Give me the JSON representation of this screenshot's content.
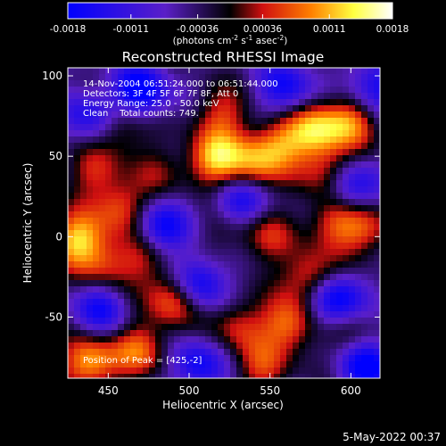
{
  "chart_data": {
    "type": "heatmap",
    "title": "Reconstructed RHESSI Image",
    "xlabel": "Heliocentric X (arcsec)",
    "ylabel": "Heliocentric Y (arcsec)",
    "xlim": [
      425,
      618
    ],
    "ylim": [
      -88,
      105
    ],
    "xticks": [
      450,
      500,
      550,
      600
    ],
    "yticks": [
      -50,
      0,
      50,
      100
    ],
    "annotations": [
      "14-Nov-2004 06:51:24.000 to 06:51:44.000",
      "Detectors: 3F 4F 5F 6F 7F 8F, Att 0",
      "Energy Range: 25.0 - 50.0 keV",
      "Clean    Total counts: 749.",
      "Position of Peak = [425,-2]"
    ],
    "colorbar": {
      "min": -0.0018,
      "max": 0.0018,
      "tick_labels": [
        "-0.0018",
        "-0.0011",
        "-0.00036",
        "0.00036",
        "0.0011",
        "0.0018"
      ],
      "tick_values": [
        -0.0018,
        -0.0011,
        -0.00036,
        0.00036,
        0.0011,
        0.0018
      ],
      "units_label": "(photons cm",
      "units_exp1": "-2",
      "units_mid": " s",
      "units_exp2": "-1",
      "units_end": " asec",
      "units_exp3": "-2",
      "units_close": ")",
      "colors": [
        "#0000ff",
        "#5a1fc8",
        "#000000",
        "#d01010",
        "#ff8000",
        "#ffff40",
        "#ffffff"
      ],
      "color_positions": [
        0.0,
        0.3,
        0.5,
        0.6,
        0.75,
        0.88,
        1.0
      ]
    },
    "grid": false,
    "peak": [
      425,
      -2
    ],
    "hotspots": [
      {
        "x": 431,
        "y": -2,
        "v": 0.0016
      },
      {
        "x": 438,
        "y": -78,
        "v": 0.0016
      },
      {
        "x": 458,
        "y": 68,
        "v": 0.0009
      },
      {
        "x": 458,
        "y": 18,
        "v": 0.0011
      },
      {
        "x": 442,
        "y": 40,
        "v": 0.0008
      },
      {
        "x": 448,
        "y": -18,
        "v": 0.0009
      },
      {
        "x": 472,
        "y": -12,
        "v": 0.0008
      },
      {
        "x": 470,
        "y": -70,
        "v": 0.0012
      },
      {
        "x": 492,
        "y": -38,
        "v": 0.0015
      },
      {
        "x": 516,
        "y": 48,
        "v": 0.0016
      },
      {
        "x": 540,
        "y": 45,
        "v": 0.0012
      },
      {
        "x": 520,
        "y": 76,
        "v": 0.0009
      },
      {
        "x": 556,
        "y": 58,
        "v": 0.0011
      },
      {
        "x": 578,
        "y": 66,
        "v": 0.0015
      },
      {
        "x": 600,
        "y": 72,
        "v": 0.0013
      },
      {
        "x": 585,
        "y": 40,
        "v": 0.001
      },
      {
        "x": 590,
        "y": 10,
        "v": 0.0011
      },
      {
        "x": 610,
        "y": 5,
        "v": 0.001
      },
      {
        "x": 548,
        "y": 0,
        "v": 0.0008
      },
      {
        "x": 575,
        "y": -25,
        "v": 0.0012
      },
      {
        "x": 562,
        "y": -55,
        "v": 0.0013
      },
      {
        "x": 530,
        "y": -55,
        "v": 0.0009
      },
      {
        "x": 545,
        "y": -82,
        "v": 0.0009
      },
      {
        "x": 525,
        "y": 8,
        "v": 0.0007
      },
      {
        "x": 482,
        "y": 40,
        "v": 0.0005
      },
      {
        "x": 600,
        "y": -60,
        "v": 0.0006
      }
    ],
    "coldspots": [
      {
        "x": 470,
        "y": 90,
        "v": -0.0016
      },
      {
        "x": 530,
        "y": 20,
        "v": -0.0015
      },
      {
        "x": 505,
        "y": -30,
        "v": -0.0016
      },
      {
        "x": 590,
        "y": -40,
        "v": -0.0017
      },
      {
        "x": 600,
        "y": 30,
        "v": -0.0014
      },
      {
        "x": 560,
        "y": 92,
        "v": -0.0012
      },
      {
        "x": 482,
        "y": 5,
        "v": -0.0014
      },
      {
        "x": 440,
        "y": 75,
        "v": -0.0011
      },
      {
        "x": 615,
        "y": 92,
        "v": -0.0013
      },
      {
        "x": 610,
        "y": -80,
        "v": -0.0015
      },
      {
        "x": 445,
        "y": -45,
        "v": -0.0011
      },
      {
        "x": 505,
        "y": -80,
        "v": -0.0012
      }
    ]
  },
  "footer": {
    "timestamp": "5-May-2022 00:37"
  }
}
